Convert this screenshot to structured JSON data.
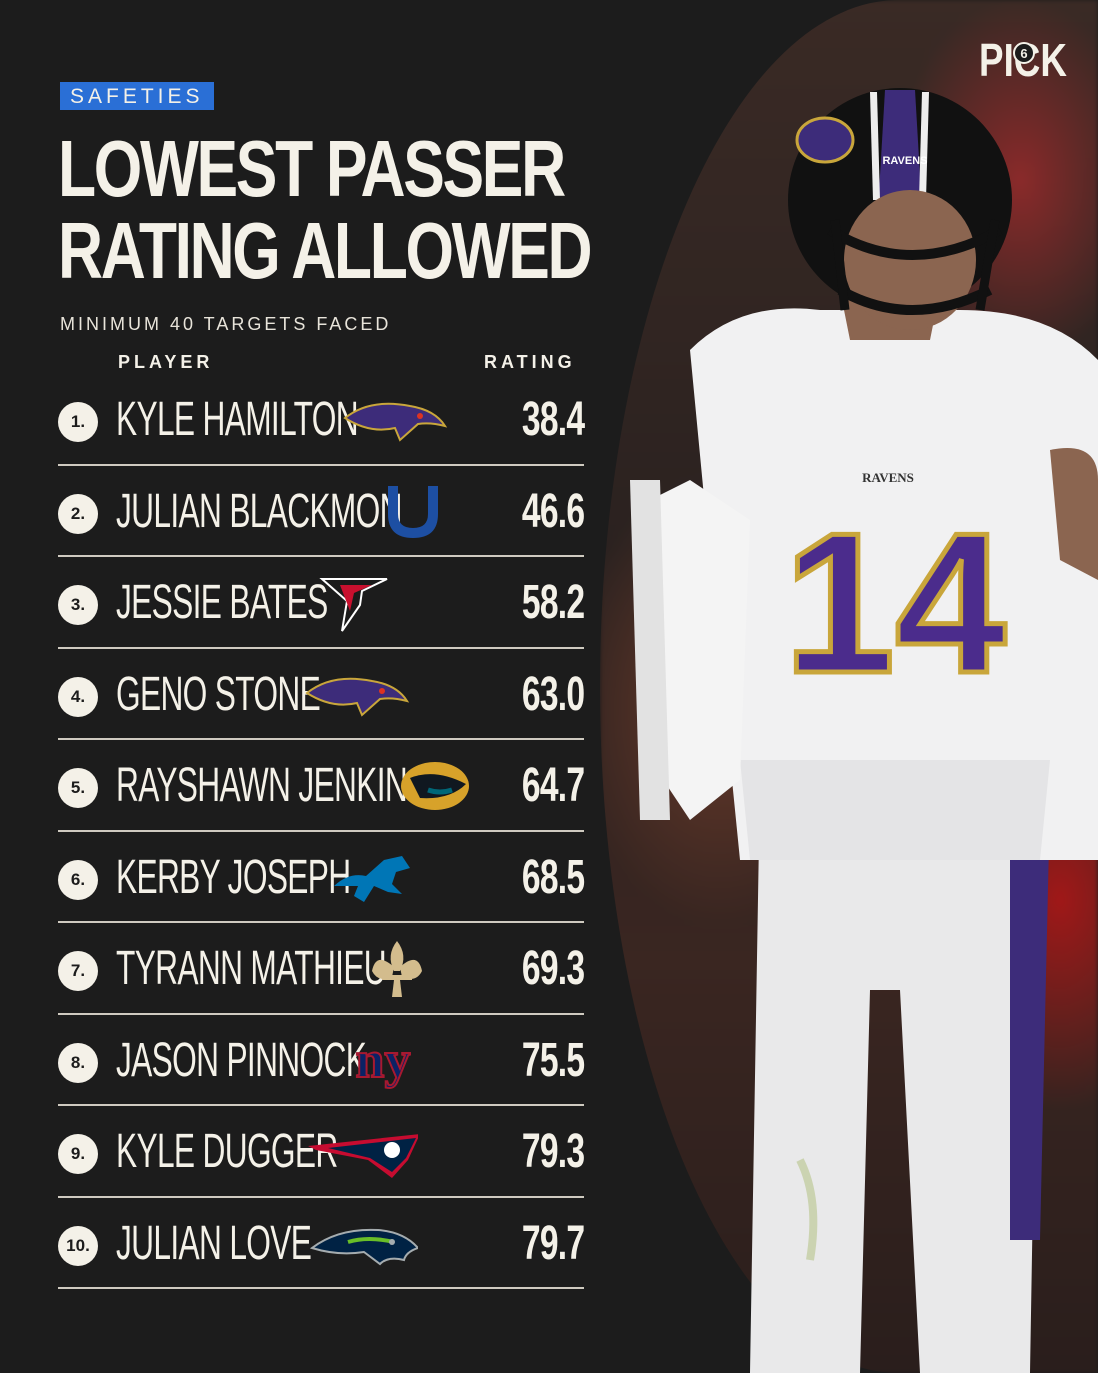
{
  "brand": {
    "logo_text": "PICK",
    "logo_number": "6"
  },
  "tag": "SAFETIES",
  "title": {
    "line1": "LOWEST PASSER",
    "line2": "RATING ALLOWED"
  },
  "subtitle": "MINIMUM 40 TARGETS FACED",
  "headers": {
    "player": "PLAYER",
    "rating": "RATING"
  },
  "rows": [
    {
      "rank": "1.",
      "name": "KYLE HAMILTON",
      "team_icon": "ravens-logo-icon",
      "rating": "38.4"
    },
    {
      "rank": "2.",
      "name": "JULIAN BLACKMON",
      "team_icon": "colts-logo-icon",
      "rating": "46.6"
    },
    {
      "rank": "3.",
      "name": "JESSIE BATES",
      "team_icon": "falcons-logo-icon",
      "rating": "58.2"
    },
    {
      "rank": "4.",
      "name": "GENO STONE",
      "team_icon": "ravens-logo-icon",
      "rating": "63.0"
    },
    {
      "rank": "5.",
      "name": "RAYSHAWN JENKINS",
      "team_icon": "jaguars-logo-icon",
      "rating": "64.7"
    },
    {
      "rank": "6.",
      "name": "KERBY JOSEPH",
      "team_icon": "lions-logo-icon",
      "rating": "68.5"
    },
    {
      "rank": "7.",
      "name": "TYRANN MATHIEU",
      "team_icon": "saints-logo-icon",
      "rating": "69.3"
    },
    {
      "rank": "8.",
      "name": "JASON PINNOCK",
      "team_icon": "giants-logo-icon",
      "rating": "75.5"
    },
    {
      "rank": "9.",
      "name": "KYLE DUGGER",
      "team_icon": "patriots-logo-icon",
      "rating": "79.3"
    },
    {
      "rank": "10.",
      "name": "JULIAN LOVE",
      "team_icon": "seahawks-logo-icon",
      "rating": "79.7"
    }
  ],
  "jersey": {
    "team_text": "RAVENS",
    "helmet_text": "RAVENS",
    "number": "14"
  },
  "colors": {
    "tag": "#2a6fd6",
    "background": "#1c1c1c",
    "text": "#f4f1e8",
    "ravens_purple": "#4b2c8c"
  }
}
